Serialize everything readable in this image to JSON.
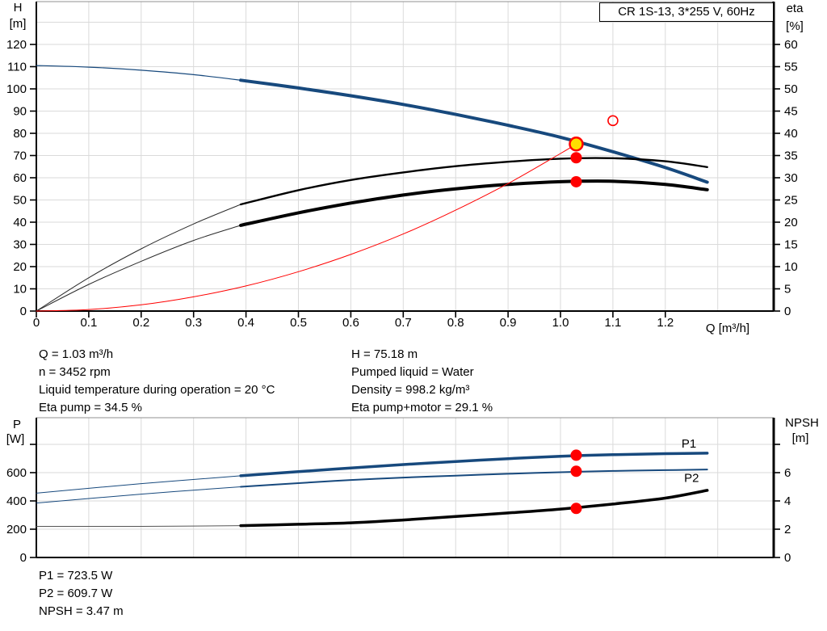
{
  "title": "CR 1S-13, 3*255 V, 60Hz",
  "colors": {
    "curve_blue": "#17497d",
    "curve_black": "#000000",
    "curve_red": "#ff0000",
    "marker_yellow": "#ffdf00",
    "marker_red": "#ff0000",
    "grid": "#dadada",
    "frame": "#000000",
    "frame_top": "#909090",
    "label_blue": "#17497d"
  },
  "info_top_left": [
    "Q = 1.03 m³/h",
    "n = 3452 rpm",
    "Liquid temperature during operation = 20 °C",
    "Eta pump = 34.5 %"
  ],
  "info_top_right": [
    "H = 75.18 m",
    "Pumped liquid = Water",
    "Density = 998.2 kg/m³",
    "Eta pump+motor = 29.1 %"
  ],
  "info_bottom": [
    "P1 = 723.5 W",
    "P2 = 609.7 W",
    "NPSH = 3.47 m"
  ],
  "chart_data": [
    {
      "type": "line",
      "name": "qh-eta-chart",
      "title": "CR 1S-13, 3*255 V, 60Hz",
      "x_axis": {
        "label": "Q [m³/h]",
        "ticks": [
          0,
          0.1,
          0.2,
          0.3,
          0.4,
          0.5,
          0.6,
          0.7,
          0.8,
          0.9,
          1.0,
          1.1,
          1.2
        ],
        "tick_labels": [
          "0",
          "0.1",
          "0.2",
          "0.3",
          "0.4",
          "0.5",
          "0.6",
          "0.7",
          "0.8",
          "0.9",
          "1.0",
          "1.1",
          "1.2"
        ],
        "grid_step": 0.1,
        "grid_max": 1.3
      },
      "left_axis": {
        "name": "H",
        "unit": "[m]",
        "ticks": [
          0,
          10,
          20,
          30,
          40,
          50,
          60,
          70,
          80,
          90,
          100,
          110,
          120
        ],
        "unlabeled_ticks": [],
        "grid_extra": [
          130
        ],
        "range": [
          0,
          139
        ]
      },
      "right_axis": {
        "name": "eta",
        "unit": "[%]",
        "ticks": [
          0,
          5,
          10,
          15,
          20,
          25,
          30,
          35,
          40,
          45,
          50,
          55,
          60
        ],
        "unlabeled_ticks": [],
        "range": [
          0,
          69.6
        ]
      },
      "series": [
        {
          "name": "head-curve-thin",
          "axis": "H",
          "color": "#17497d",
          "width": 1.2,
          "points": [
            [
              0,
              110.5
            ],
            [
              0.1,
              109.8
            ],
            [
              0.2,
              108.4
            ],
            [
              0.3,
              106.4
            ],
            [
              0.39,
              103.9
            ]
          ]
        },
        {
          "name": "head-curve",
          "axis": "H",
          "color": "#17497d",
          "width": 4,
          "points": [
            [
              0.39,
              103.9
            ],
            [
              0.5,
              100.4
            ],
            [
              0.6,
              96.9
            ],
            [
              0.7,
              93.0
            ],
            [
              0.8,
              88.5
            ],
            [
              0.9,
              83.6
            ],
            [
              1.0,
              78.2
            ],
            [
              1.1,
              71.7
            ],
            [
              1.2,
              64.6
            ],
            [
              1.28,
              58.0
            ]
          ]
        },
        {
          "name": "eta-pump-thin",
          "axis": "eta",
          "color": "#2a2a2a",
          "width": 1,
          "points": [
            [
              0,
              0
            ],
            [
              0.1,
              7.5
            ],
            [
              0.2,
              14.0
            ],
            [
              0.3,
              19.6
            ],
            [
              0.39,
              24.0
            ]
          ]
        },
        {
          "name": "eta-pump",
          "axis": "eta",
          "color": "#000000",
          "width": 2.4,
          "points": [
            [
              0.39,
              24.0
            ],
            [
              0.5,
              27.2
            ],
            [
              0.6,
              29.5
            ],
            [
              0.7,
              31.2
            ],
            [
              0.8,
              32.6
            ],
            [
              0.9,
              33.6
            ],
            [
              1.0,
              34.3
            ],
            [
              1.1,
              34.4
            ],
            [
              1.2,
              33.7
            ],
            [
              1.28,
              32.4
            ]
          ]
        },
        {
          "name": "eta-pump-motor-thin",
          "axis": "eta",
          "color": "#2a2a2a",
          "width": 1,
          "points": [
            [
              0,
              0
            ],
            [
              0.1,
              6.0
            ],
            [
              0.2,
              11.2
            ],
            [
              0.3,
              15.9
            ],
            [
              0.39,
              19.3
            ]
          ]
        },
        {
          "name": "eta-pump-motor",
          "axis": "eta",
          "color": "#000000",
          "width": 4,
          "points": [
            [
              0.39,
              19.3
            ],
            [
              0.5,
              22.1
            ],
            [
              0.6,
              24.3
            ],
            [
              0.7,
              26.1
            ],
            [
              0.8,
              27.5
            ],
            [
              0.9,
              28.5
            ],
            [
              1.0,
              29.1
            ],
            [
              1.1,
              29.2
            ],
            [
              1.2,
              28.5
            ],
            [
              1.28,
              27.3
            ]
          ]
        },
        {
          "name": "system-curve",
          "axis": "H",
          "color": "#ff0000",
          "width": 1,
          "points": [
            [
              0,
              0
            ],
            [
              0.1,
              0.7
            ],
            [
              0.2,
              2.8
            ],
            [
              0.3,
              6.4
            ],
            [
              0.4,
              11.3
            ],
            [
              0.5,
              17.7
            ],
            [
              0.6,
              25.5
            ],
            [
              0.7,
              34.7
            ],
            [
              0.8,
              45.4
            ],
            [
              0.9,
              57.4
            ],
            [
              1.0,
              70.9
            ],
            [
              1.03,
              75.2
            ]
          ]
        }
      ],
      "markers": [
        {
          "name": "duty-point-head",
          "axis": "H",
          "q": 1.03,
          "value": 75.18,
          "style": "yellow-dot"
        },
        {
          "name": "duty-point-eta-pump",
          "axis": "eta",
          "q": 1.03,
          "value": 34.5,
          "style": "red-dot"
        },
        {
          "name": "duty-point-eta-pump-motor",
          "axis": "eta",
          "q": 1.03,
          "value": 29.1,
          "style": "red-dot"
        },
        {
          "name": "requested-duty-point",
          "axis": "H",
          "q": 1.1,
          "value": 85.7,
          "style": "red-ring"
        }
      ],
      "curve_labels": []
    },
    {
      "type": "line",
      "name": "power-npsh-chart",
      "x_axis": {
        "label": "",
        "ticks": [],
        "tick_labels": [],
        "grid_step": 0.1,
        "grid_max": 1.3
      },
      "left_axis": {
        "name": "P",
        "unit": "[W]",
        "ticks": [
          0,
          200,
          400,
          600
        ],
        "unlabeled_ticks": [
          800
        ],
        "grid_extra": [],
        "range": [
          0,
          989
        ]
      },
      "right_axis": {
        "name": "NPSH",
        "unit": "[m]",
        "ticks": [
          0,
          2,
          4,
          6
        ],
        "unlabeled_ticks": [
          8
        ],
        "range": [
          0,
          9.9
        ]
      },
      "series": [
        {
          "name": "p1-curve-thin",
          "axis": "P",
          "color": "#17497d",
          "width": 1,
          "points": [
            [
              0,
              455
            ],
            [
              0.2,
              522
            ],
            [
              0.39,
              578
            ]
          ]
        },
        {
          "name": "p1-curve",
          "axis": "P",
          "color": "#17497d",
          "width": 3.5,
          "points": [
            [
              0.39,
              578
            ],
            [
              0.5,
              607
            ],
            [
              0.6,
              633
            ],
            [
              0.7,
              657
            ],
            [
              0.8,
              679
            ],
            [
              0.9,
              699
            ],
            [
              1.0,
              716
            ],
            [
              1.1,
              727
            ],
            [
              1.2,
              734
            ],
            [
              1.28,
              738
            ]
          ]
        },
        {
          "name": "p2-curve-thin",
          "axis": "P",
          "color": "#17497d",
          "width": 1,
          "points": [
            [
              0,
              385
            ],
            [
              0.2,
              448
            ],
            [
              0.39,
              500
            ]
          ]
        },
        {
          "name": "p2-curve",
          "axis": "P",
          "color": "#17497d",
          "width": 2,
          "points": [
            [
              0.39,
              500
            ],
            [
              0.5,
              526
            ],
            [
              0.6,
              548
            ],
            [
              0.7,
              565
            ],
            [
              0.8,
              579
            ],
            [
              0.9,
              592
            ],
            [
              1.0,
              603
            ],
            [
              1.1,
              612
            ],
            [
              1.2,
              618
            ],
            [
              1.28,
              622
            ]
          ]
        },
        {
          "name": "npsh-curve-thin",
          "axis": "NPSH",
          "color": "#555555",
          "width": 1,
          "points": [
            [
              0,
              2.2
            ],
            [
              0.2,
              2.2
            ],
            [
              0.39,
              2.25
            ]
          ]
        },
        {
          "name": "npsh-curve",
          "axis": "NPSH",
          "color": "#000000",
          "width": 3.5,
          "points": [
            [
              0.39,
              2.25
            ],
            [
              0.5,
              2.35
            ],
            [
              0.6,
              2.45
            ],
            [
              0.7,
              2.65
            ],
            [
              0.8,
              2.9
            ],
            [
              0.9,
              3.15
            ],
            [
              1.0,
              3.42
            ],
            [
              1.1,
              3.78
            ],
            [
              1.2,
              4.2
            ],
            [
              1.28,
              4.75
            ]
          ]
        }
      ],
      "markers": [
        {
          "name": "duty-point-p1",
          "axis": "P",
          "q": 1.03,
          "value": 723.5,
          "style": "red-dot"
        },
        {
          "name": "duty-point-p2",
          "axis": "P",
          "q": 1.03,
          "value": 609.7,
          "style": "red-dot"
        },
        {
          "name": "duty-point-npsh",
          "axis": "NPSH",
          "q": 1.03,
          "value": 3.47,
          "style": "red-dot"
        }
      ],
      "curve_labels": [
        {
          "text": "P1",
          "axis": "P",
          "q": 1.245,
          "value": 778
        },
        {
          "text": "P2",
          "axis": "P",
          "q": 1.25,
          "value": 535
        }
      ]
    }
  ]
}
